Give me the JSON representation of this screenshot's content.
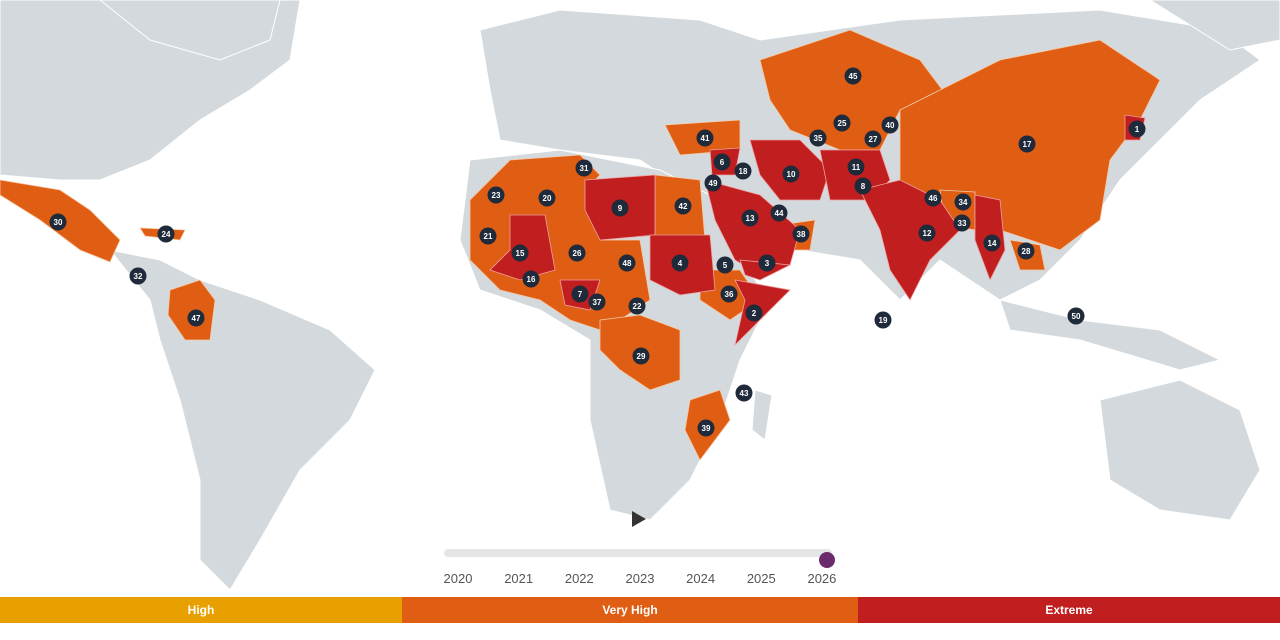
{
  "map": {
    "colors": {
      "land": "#d3d9dc",
      "very_high": "#df5e14",
      "extreme": "#c11e1f",
      "high": "#e8a000",
      "marker": "#1f2a3a"
    },
    "ranks": [
      1,
      2,
      3,
      4,
      5,
      6,
      7,
      8,
      9,
      10,
      11,
      12,
      13,
      14,
      15,
      16,
      17,
      18,
      19,
      20,
      21,
      22,
      23,
      24,
      25,
      26,
      27,
      28,
      29,
      30,
      31,
      32,
      33,
      34,
      35,
      36,
      37,
      38,
      39,
      40,
      41,
      42,
      43,
      44,
      45,
      46,
      47,
      48,
      49,
      50
    ]
  },
  "timeline": {
    "play_icon": "play-icon",
    "years": [
      "2020",
      "2021",
      "2022",
      "2023",
      "2024",
      "2025",
      "2026"
    ],
    "selected_year": "2026",
    "handle_color": "#6b2a6b"
  },
  "legend": [
    {
      "label": "High",
      "color": "#e8a000"
    },
    {
      "label": "Very High",
      "color": "#df5e14"
    },
    {
      "label": "Extreme",
      "color": "#c11e1f"
    }
  ]
}
